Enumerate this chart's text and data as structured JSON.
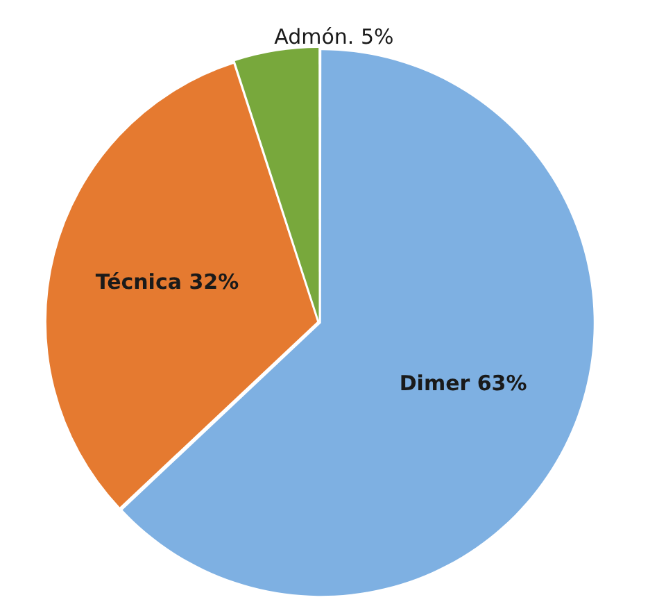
{
  "chart_data": {
    "type": "pie",
    "categories": [
      "Dimer",
      "Técnica",
      "Admón."
    ],
    "values": [
      63,
      32,
      5
    ],
    "value_labels": [
      "63%",
      "32%",
      "5%"
    ],
    "colors": [
      "#7eb0e2",
      "#e57a30",
      "#78a83c"
    ],
    "legend": false
  }
}
